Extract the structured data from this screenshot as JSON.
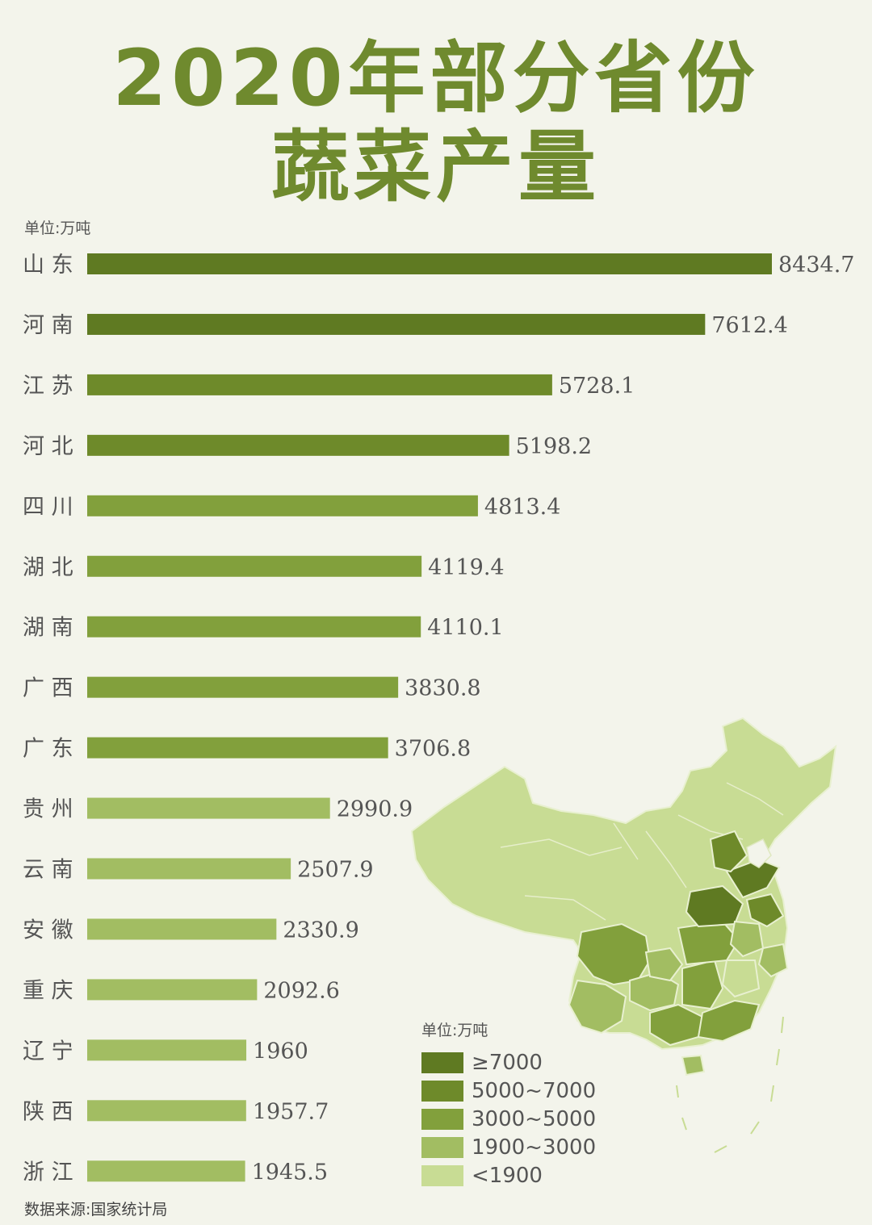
{
  "title_line1": "2020年部分省份",
  "title_line2": "蔬菜产量",
  "unit_label": "单位:万吨",
  "source_label": "数据来源:国家统计局",
  "colors": {
    "c7000": "#5f7a22",
    "c5000": "#6e8a2a",
    "c3000": "#82a03c",
    "c1900": "#a2bd62",
    "c_low": "#c8dc94",
    "text": "#555555"
  },
  "chart_data": {
    "type": "bar",
    "orientation": "horizontal",
    "title": "2020年部分省份蔬菜产量",
    "unit": "单位:万吨",
    "categories": [
      "山 东",
      "河 南",
      "江 苏",
      "河 北",
      "四 川",
      "湖 北",
      "湖 南",
      "广 西",
      "广 东",
      "贵 州",
      "云 南",
      "安 徽",
      "重 庆",
      "辽 宁",
      "陕 西",
      "浙 江"
    ],
    "values": [
      8434.7,
      7612.4,
      5728.1,
      5198.2,
      4813.4,
      4119.4,
      4110.1,
      3830.8,
      3706.8,
      2990.9,
      2507.9,
      2330.9,
      2092.6,
      1960,
      1957.7,
      1945.5
    ],
    "value_labels": [
      "8434.7",
      "7612.4",
      "5728.1",
      "5198.2",
      "4813.4",
      "4119.4",
      "4110.1",
      "3830.8",
      "3706.8",
      "2990.9",
      "2507.9",
      "2330.9",
      "2092.6",
      "1960",
      "1957.7",
      "1945.5"
    ],
    "xlim": [
      0,
      8434.7
    ],
    "grid": false,
    "source": "数据来源:国家统计局"
  },
  "map": {
    "unit_label": "单位:万吨",
    "legend": [
      {
        "label": "≥7000",
        "color_key": "c7000"
      },
      {
        "label": "5000~7000",
        "color_key": "c5000"
      },
      {
        "label": "3000~5000",
        "color_key": "c3000"
      },
      {
        "label": "1900~3000",
        "color_key": "c1900"
      },
      {
        "label": "<1900",
        "color_key": "c_low"
      }
    ]
  }
}
